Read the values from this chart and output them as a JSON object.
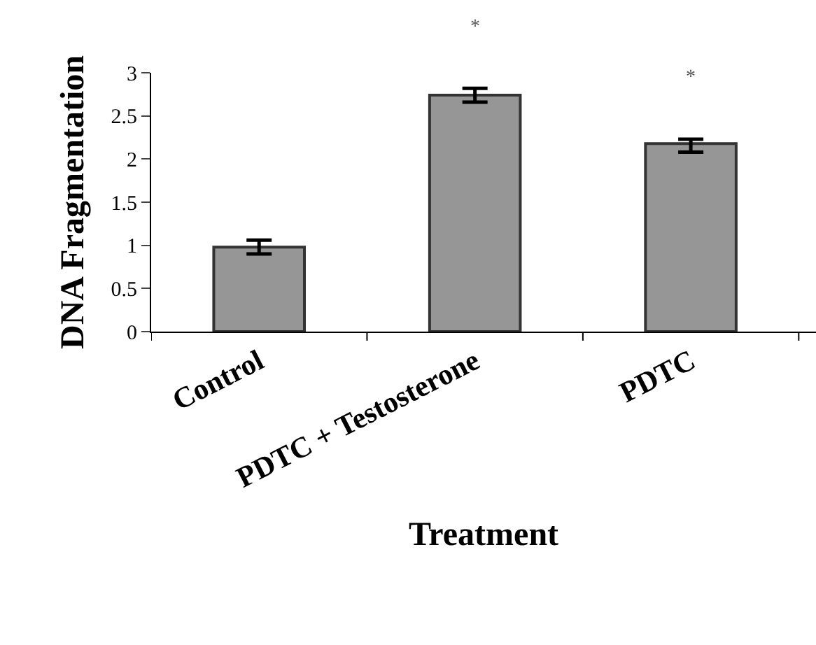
{
  "chart_data": {
    "type": "bar",
    "xlabel": "Treatment",
    "ylabel": "DNA Fragmentation",
    "categories": [
      "Control",
      "PDTC + Testosterone",
      "PDTC"
    ],
    "values": [
      0.98,
      2.74,
      2.18
    ],
    "errors": [
      0.08,
      0.08,
      [
        2.08,
        2.23
      ]
    ],
    "color": "#969696",
    "ylim": [
      0,
      3
    ],
    "yticks": [
      0,
      0.5,
      1,
      1.5,
      2,
      2.5,
      3
    ],
    "annotations": [
      "*",
      "*"
    ]
  }
}
